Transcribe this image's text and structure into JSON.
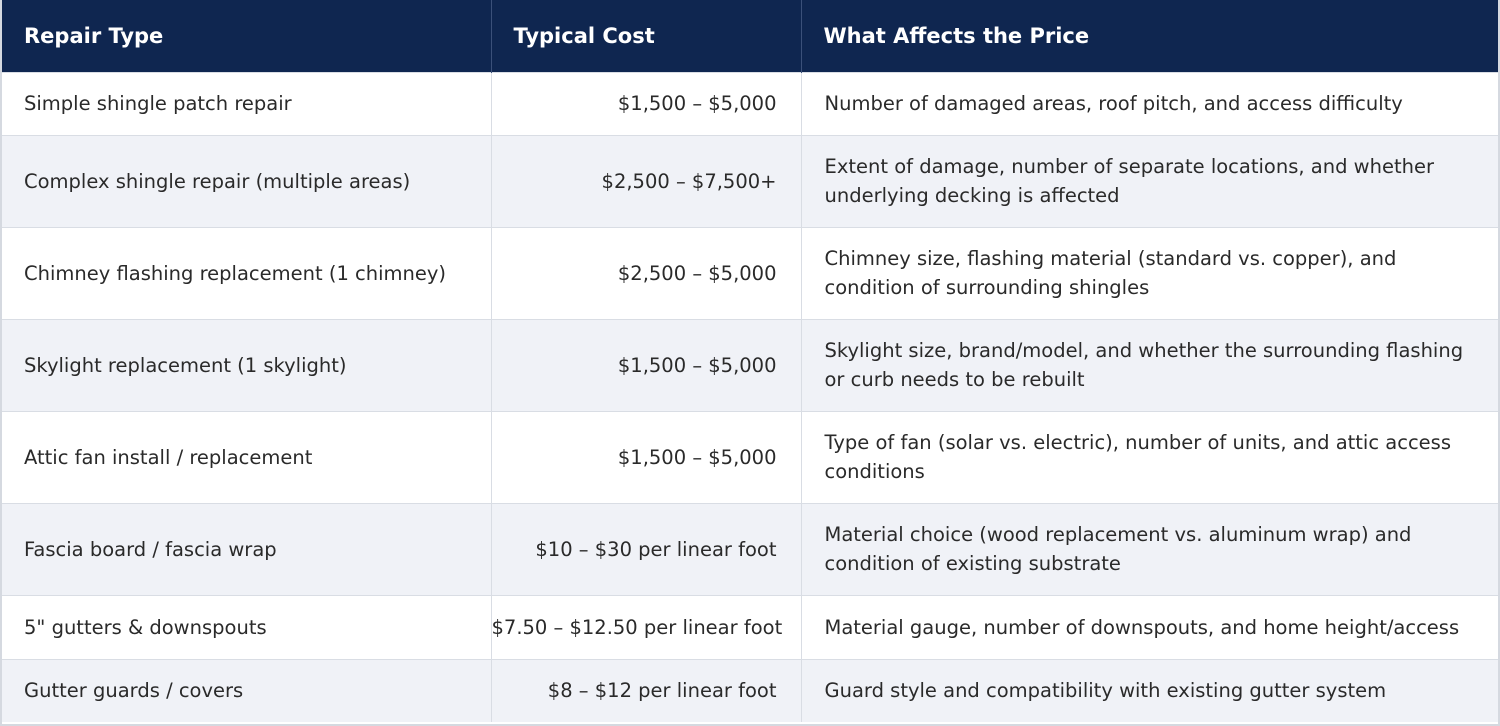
{
  "table": {
    "headers": [
      "Repair Type",
      "Typical Cost",
      "What Affects the Price"
    ],
    "rows": [
      {
        "type": "Simple shingle patch repair",
        "cost": "$1,500 – $5,000",
        "factors": "Number of damaged areas, roof pitch, and access difficulty"
      },
      {
        "type": "Complex shingle repair (multiple areas)",
        "cost": "$2,500 – $7,500+",
        "factors": "Extent of damage, number of separate locations, and whether underlying decking is affected"
      },
      {
        "type": "Chimney flashing replacement (1 chimney)",
        "cost": "$2,500 – $5,000",
        "factors": "Chimney size, flashing material (standard vs. copper), and condition of surrounding shingles"
      },
      {
        "type": "Skylight replacement (1 skylight)",
        "cost": "$1,500 – $5,000",
        "factors": "Skylight size, brand/model, and whether the surrounding flashing or curb needs to be rebuilt"
      },
      {
        "type": "Attic fan install / replacement",
        "cost": "$1,500 – $5,000",
        "factors": "Type of fan (solar vs. electric), number of units, and attic access conditions"
      },
      {
        "type": "Fascia board / fascia wrap",
        "cost": "$10 – $30 per linear foot",
        "factors": "Material choice (wood replacement vs. aluminum wrap) and condition of existing substrate"
      },
      {
        "type": "5\" gutters & downspouts",
        "cost": "$7.50 – $12.50 per linear foot",
        "factors": "Material gauge, number of downspouts, and home height/access"
      },
      {
        "type": "Gutter guards / covers",
        "cost": "$8 – $12 per linear foot",
        "factors": "Guard style and compatibility with existing gutter system"
      }
    ]
  },
  "colors": {
    "header_bg": "#0f2650",
    "row_alt_bg": "#f0f2f7",
    "border": "#d9dde4"
  }
}
